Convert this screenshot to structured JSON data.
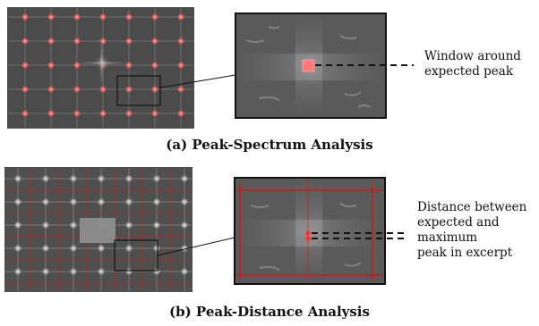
{
  "figure_a": {
    "caption": "(a) Peak-Spectrum Analysis",
    "annotation_lines": [
      "Window around",
      "expected peak"
    ]
  },
  "figure_b": {
    "caption": "(b) Peak-Distance Analysis",
    "annotation_lines": [
      "Distance between",
      "expected and",
      "maximum",
      "peak in excerpt"
    ]
  },
  "colors": {
    "spectrum_bg": "#4a4a4a",
    "peak_red": "#ff6b6b",
    "grid_red": "#d01818",
    "box_outline": "#111111"
  }
}
